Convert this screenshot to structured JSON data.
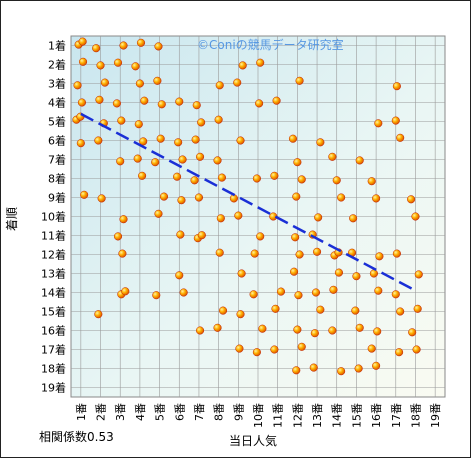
{
  "watermark": "©Coniの競馬データ研究室",
  "correlation_note": "相関係数0.53",
  "chart_data": {
    "type": "scatter",
    "title": "",
    "xlabel": "当日人気",
    "ylabel": "着順",
    "x_categories": [
      "1番",
      "2番",
      "3番",
      "4番",
      "5番",
      "6番",
      "7番",
      "8番",
      "9番",
      "10番",
      "11番",
      "12番",
      "13番",
      "14番",
      "15番",
      "16番",
      "17番",
      "18番",
      "19番"
    ],
    "y_categories": [
      "1着",
      "2着",
      "3着",
      "4着",
      "5着",
      "6着",
      "7着",
      "8着",
      "9着",
      "10着",
      "11着",
      "12着",
      "13着",
      "14着",
      "15着",
      "16着",
      "17着",
      "18着",
      "19着"
    ],
    "y_inverted": true,
    "grid": true,
    "trendline": {
      "x": [
        1,
        18
      ],
      "y": [
        4.6,
        13.9
      ],
      "style": "dashed",
      "color": "#1a2fd6"
    },
    "marker_color": "#ffb000",
    "marker_edge": "#c02000",
    "points": [
      [
        1,
        1
      ],
      [
        1,
        1
      ],
      [
        1,
        2
      ],
      [
        1,
        3
      ],
      [
        1,
        4
      ],
      [
        1,
        5
      ],
      [
        1,
        5
      ],
      [
        1,
        6
      ],
      [
        1,
        9
      ],
      [
        2,
        1
      ],
      [
        2,
        2
      ],
      [
        2,
        3
      ],
      [
        2,
        4
      ],
      [
        2,
        5
      ],
      [
        2,
        6
      ],
      [
        2,
        9
      ],
      [
        2,
        15
      ],
      [
        3,
        1
      ],
      [
        3,
        2
      ],
      [
        3,
        4
      ],
      [
        3,
        5
      ],
      [
        3,
        7
      ],
      [
        3,
        10
      ],
      [
        3,
        11
      ],
      [
        3,
        12
      ],
      [
        3,
        14
      ],
      [
        3,
        14
      ],
      [
        4,
        1
      ],
      [
        4,
        2
      ],
      [
        4,
        3
      ],
      [
        4,
        4
      ],
      [
        4,
        5
      ],
      [
        4,
        6
      ],
      [
        4,
        7
      ],
      [
        4,
        8
      ],
      [
        5,
        1
      ],
      [
        5,
        3
      ],
      [
        5,
        4
      ],
      [
        5,
        6
      ],
      [
        5,
        7
      ],
      [
        5,
        9
      ],
      [
        5,
        10
      ],
      [
        5,
        14
      ],
      [
        6,
        4
      ],
      [
        6,
        6
      ],
      [
        6,
        7
      ],
      [
        6,
        8
      ],
      [
        6,
        9
      ],
      [
        6,
        11
      ],
      [
        6,
        13
      ],
      [
        6,
        14
      ],
      [
        7,
        4
      ],
      [
        7,
        5
      ],
      [
        7,
        6
      ],
      [
        7,
        7
      ],
      [
        7,
        8
      ],
      [
        7,
        9
      ],
      [
        7,
        11
      ],
      [
        7,
        11
      ],
      [
        7,
        16
      ],
      [
        8,
        3
      ],
      [
        8,
        5
      ],
      [
        8,
        7
      ],
      [
        8,
        8
      ],
      [
        8,
        10
      ],
      [
        8,
        12
      ],
      [
        8,
        15
      ],
      [
        8,
        16
      ],
      [
        9,
        2
      ],
      [
        9,
        3
      ],
      [
        9,
        6
      ],
      [
        9,
        9
      ],
      [
        9,
        10
      ],
      [
        9,
        13
      ],
      [
        9,
        15
      ],
      [
        9,
        17
      ],
      [
        10,
        2
      ],
      [
        10,
        4
      ],
      [
        10,
        8
      ],
      [
        10,
        11
      ],
      [
        10,
        12
      ],
      [
        10,
        14
      ],
      [
        10,
        16
      ],
      [
        10,
        17
      ],
      [
        11,
        4
      ],
      [
        11,
        8
      ],
      [
        11,
        10
      ],
      [
        11,
        14
      ],
      [
        11,
        15
      ],
      [
        11,
        17
      ],
      [
        12,
        3
      ],
      [
        12,
        6
      ],
      [
        12,
        7
      ],
      [
        12,
        8
      ],
      [
        12,
        9
      ],
      [
        12,
        11
      ],
      [
        12,
        12
      ],
      [
        12,
        13
      ],
      [
        12,
        14
      ],
      [
        12,
        16
      ],
      [
        12,
        17
      ],
      [
        12,
        18
      ],
      [
        13,
        6
      ],
      [
        13,
        10
      ],
      [
        13,
        11
      ],
      [
        13,
        12
      ],
      [
        13,
        14
      ],
      [
        13,
        15
      ],
      [
        13,
        16
      ],
      [
        13,
        18
      ],
      [
        14,
        7
      ],
      [
        14,
        8
      ],
      [
        14,
        9
      ],
      [
        14,
        12
      ],
      [
        14,
        12
      ],
      [
        14,
        13
      ],
      [
        14,
        14
      ],
      [
        14,
        16
      ],
      [
        14,
        18
      ],
      [
        15,
        7
      ],
      [
        15,
        10
      ],
      [
        15,
        12
      ],
      [
        15,
        13
      ],
      [
        15,
        15
      ],
      [
        15,
        16
      ],
      [
        15,
        18
      ],
      [
        16,
        5
      ],
      [
        16,
        8
      ],
      [
        16,
        9
      ],
      [
        16,
        12
      ],
      [
        16,
        13
      ],
      [
        16,
        14
      ],
      [
        16,
        16
      ],
      [
        16,
        17
      ],
      [
        16,
        18
      ],
      [
        17,
        3
      ],
      [
        17,
        5
      ],
      [
        17,
        6
      ],
      [
        17,
        12
      ],
      [
        17,
        14
      ],
      [
        17,
        15
      ],
      [
        17,
        17
      ],
      [
        18,
        9
      ],
      [
        18,
        10
      ],
      [
        18,
        13
      ],
      [
        18,
        15
      ],
      [
        18,
        16
      ],
      [
        18,
        17
      ]
    ]
  }
}
